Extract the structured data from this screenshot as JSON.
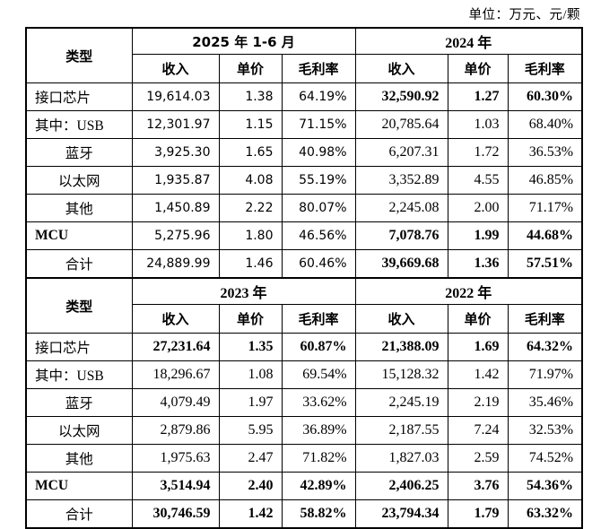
{
  "unit_note": "单位：万元、元/颗",
  "table": {
    "type_header": "类型",
    "sub_headers": [
      "收入",
      "单价",
      "毛利率"
    ],
    "sections": [
      {
        "periods": [
          "2025 年 1-6 月",
          "2024 年"
        ],
        "rows": [
          {
            "label": "接口芯片",
            "align": "left",
            "bold_label": false,
            "emphasis": true,
            "values": [
              "19,614.03",
              "1.38",
              "64.19%",
              "32,590.92",
              "1.27",
              "60.30%"
            ]
          },
          {
            "label": "其中：USB",
            "align": "left",
            "bold_label": false,
            "emphasis": false,
            "values": [
              "12,301.97",
              "1.15",
              "71.15%",
              "20,785.64",
              "1.03",
              "68.40%"
            ]
          },
          {
            "label": "蓝牙",
            "align": "center",
            "bold_label": false,
            "emphasis": false,
            "values": [
              "3,925.30",
              "1.65",
              "40.98%",
              "6,207.31",
              "1.72",
              "36.53%"
            ]
          },
          {
            "label": "以太网",
            "align": "center",
            "bold_label": false,
            "emphasis": false,
            "values": [
              "1,935.87",
              "4.08",
              "55.19%",
              "3,352.89",
              "4.55",
              "46.85%"
            ]
          },
          {
            "label": "其他",
            "align": "center",
            "bold_label": false,
            "emphasis": false,
            "values": [
              "1,450.89",
              "2.22",
              "80.07%",
              "2,245.08",
              "2.00",
              "71.17%"
            ]
          },
          {
            "label": "MCU",
            "align": "left",
            "bold_label": true,
            "emphasis": true,
            "values": [
              "5,275.96",
              "1.80",
              "46.56%",
              "7,078.76",
              "1.99",
              "44.68%"
            ]
          },
          {
            "label": "合计",
            "align": "center",
            "bold_label": false,
            "emphasis": true,
            "values": [
              "24,889.99",
              "1.46",
              "60.46%",
              "39,669.68",
              "1.36",
              "57.51%"
            ]
          }
        ]
      },
      {
        "periods": [
          "2023 年",
          "2022 年"
        ],
        "rows": [
          {
            "label": "接口芯片",
            "align": "left",
            "bold_label": false,
            "emphasis": true,
            "values": [
              "27,231.64",
              "1.35",
              "60.87%",
              "21,388.09",
              "1.69",
              "64.32%"
            ]
          },
          {
            "label": "其中：USB",
            "align": "left",
            "bold_label": false,
            "emphasis": false,
            "values": [
              "18,296.67",
              "1.08",
              "69.54%",
              "15,128.32",
              "1.42",
              "71.97%"
            ]
          },
          {
            "label": "蓝牙",
            "align": "center",
            "bold_label": false,
            "emphasis": false,
            "values": [
              "4,079.49",
              "1.97",
              "33.62%",
              "2,245.19",
              "2.19",
              "35.46%"
            ]
          },
          {
            "label": "以太网",
            "align": "center",
            "bold_label": false,
            "emphasis": false,
            "values": [
              "2,879.86",
              "5.95",
              "36.89%",
              "2,187.55",
              "7.24",
              "32.53%"
            ]
          },
          {
            "label": "其他",
            "align": "center",
            "bold_label": false,
            "emphasis": false,
            "values": [
              "1,975.63",
              "2.47",
              "71.82%",
              "1,827.03",
              "2.59",
              "74.52%"
            ]
          },
          {
            "label": "MCU",
            "align": "left",
            "bold_label": true,
            "emphasis": true,
            "values": [
              "3,514.94",
              "2.40",
              "42.89%",
              "2,406.25",
              "3.76",
              "54.36%"
            ]
          },
          {
            "label": "合计",
            "align": "center",
            "bold_label": false,
            "emphasis": true,
            "values": [
              "30,746.59",
              "1.42",
              "58.82%",
              "23,794.34",
              "1.79",
              "63.32%"
            ]
          }
        ]
      }
    ]
  }
}
